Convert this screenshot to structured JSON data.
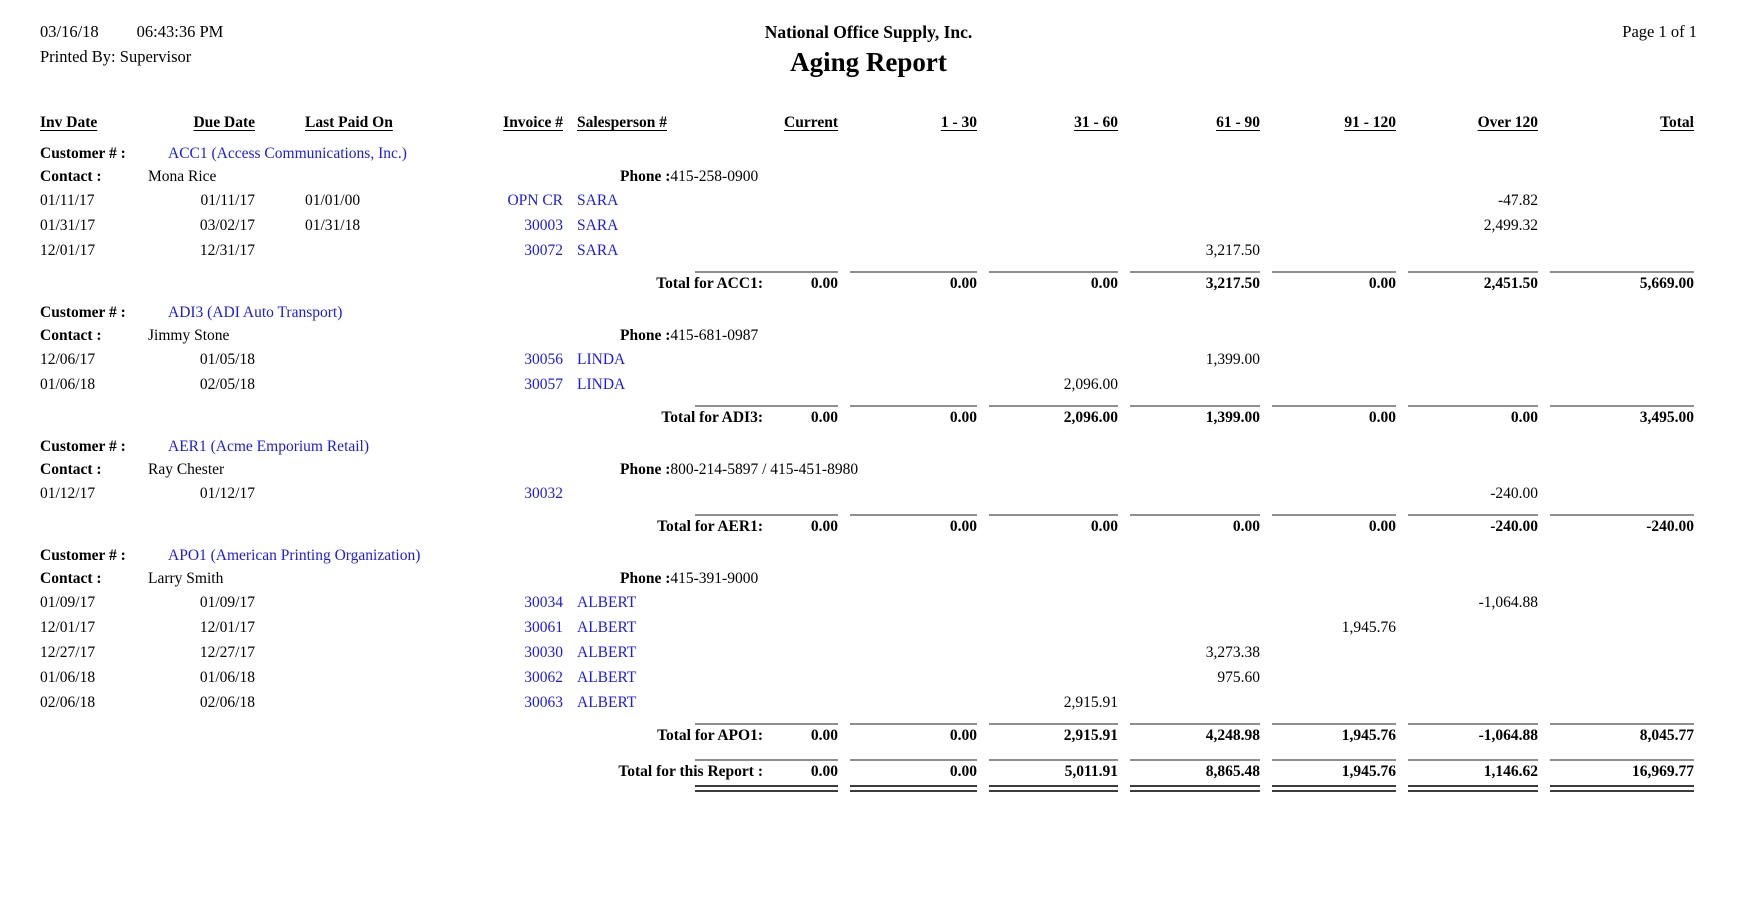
{
  "header": {
    "date": "03/16/18",
    "time": "06:43:36 PM",
    "printed_by_label": "Printed By:",
    "printed_by": "Supervisor",
    "company": "National Office Supply, Inc.",
    "report_title": "Aging Report",
    "page": "Page 1 of 1"
  },
  "columns": [
    "Inv Date",
    "Due Date",
    "Last Paid On",
    "Invoice #",
    "Salesperson #",
    "Current",
    "1 - 30",
    "31 - 60",
    "61 - 90",
    "91 - 120",
    "Over 120",
    "Total"
  ],
  "labels": {
    "customer": "Customer # :",
    "contact": "Contact :",
    "phone": "Phone :",
    "report_total": "Total for this Report :"
  },
  "customers": [
    {
      "id_name": "ACC1 (Access Communications, Inc.)",
      "contact": "Mona Rice",
      "phone": "415-258-0900",
      "rows": [
        {
          "inv_date": "01/11/17",
          "due_date": "01/11/17",
          "last_paid": "01/01/00",
          "invoice": "OPN CR",
          "salesperson": "SARA",
          "amounts": [
            "",
            "",
            "",
            "",
            "",
            "-47.82",
            ""
          ]
        },
        {
          "inv_date": "01/31/17",
          "due_date": "03/02/17",
          "last_paid": "01/31/18",
          "invoice": "30003",
          "salesperson": "SARA",
          "amounts": [
            "",
            "",
            "",
            "",
            "",
            "2,499.32",
            ""
          ]
        },
        {
          "inv_date": "12/01/17",
          "due_date": "12/31/17",
          "last_paid": "",
          "invoice": "30072",
          "salesperson": "SARA",
          "amounts": [
            "",
            "",
            "",
            "3,217.50",
            "",
            "",
            ""
          ]
        }
      ],
      "total_label": "Total for ACC1:",
      "totals": [
        "0.00",
        "0.00",
        "0.00",
        "3,217.50",
        "0.00",
        "2,451.50",
        "5,669.00"
      ]
    },
    {
      "id_name": "ADI3 (ADI Auto Transport)",
      "contact": "Jimmy Stone",
      "phone": "415-681-0987",
      "rows": [
        {
          "inv_date": "12/06/17",
          "due_date": "01/05/18",
          "last_paid": "",
          "invoice": "30056",
          "salesperson": "LINDA",
          "amounts": [
            "",
            "",
            "",
            "1,399.00",
            "",
            "",
            ""
          ]
        },
        {
          "inv_date": "01/06/18",
          "due_date": "02/05/18",
          "last_paid": "",
          "invoice": "30057",
          "salesperson": "LINDA",
          "amounts": [
            "",
            "",
            "2,096.00",
            "",
            "",
            "",
            ""
          ]
        }
      ],
      "total_label": "Total for ADI3:",
      "totals": [
        "0.00",
        "0.00",
        "2,096.00",
        "1,399.00",
        "0.00",
        "0.00",
        "3,495.00"
      ]
    },
    {
      "id_name": "AER1 (Acme Emporium Retail)",
      "contact": "Ray Chester",
      "phone": "800-214-5897 / 415-451-8980",
      "rows": [
        {
          "inv_date": "01/12/17",
          "due_date": "01/12/17",
          "last_paid": "",
          "invoice": "30032",
          "salesperson": "",
          "amounts": [
            "",
            "",
            "",
            "",
            "",
            "-240.00",
            ""
          ]
        }
      ],
      "total_label": "Total for AER1:",
      "totals": [
        "0.00",
        "0.00",
        "0.00",
        "0.00",
        "0.00",
        "-240.00",
        "-240.00"
      ]
    },
    {
      "id_name": "APO1 (American Printing Organization)",
      "contact": "Larry Smith",
      "phone": "415-391-9000",
      "rows": [
        {
          "inv_date": "01/09/17",
          "due_date": "01/09/17",
          "last_paid": "",
          "invoice": "30034",
          "salesperson": "ALBERT",
          "amounts": [
            "",
            "",
            "",
            "",
            "",
            "-1,064.88",
            ""
          ]
        },
        {
          "inv_date": "12/01/17",
          "due_date": "12/01/17",
          "last_paid": "",
          "invoice": "30061",
          "salesperson": "ALBERT",
          "amounts": [
            "",
            "",
            "",
            "",
            "1,945.76",
            "",
            ""
          ]
        },
        {
          "inv_date": "12/27/17",
          "due_date": "12/27/17",
          "last_paid": "",
          "invoice": "30030",
          "salesperson": "ALBERT",
          "amounts": [
            "",
            "",
            "",
            "3,273.38",
            "",
            "",
            ""
          ]
        },
        {
          "inv_date": "01/06/18",
          "due_date": "01/06/18",
          "last_paid": "",
          "invoice": "30062",
          "salesperson": "ALBERT",
          "amounts": [
            "",
            "",
            "",
            "975.60",
            "",
            "",
            ""
          ]
        },
        {
          "inv_date": "02/06/18",
          "due_date": "02/06/18",
          "last_paid": "",
          "invoice": "30063",
          "salesperson": "ALBERT",
          "amounts": [
            "",
            "",
            "2,915.91",
            "",
            "",
            "",
            ""
          ]
        }
      ],
      "total_label": "Total for APO1:",
      "totals": [
        "0.00",
        "0.00",
        "2,915.91",
        "4,248.98",
        "1,945.76",
        "-1,064.88",
        "8,045.77"
      ]
    }
  ],
  "report_totals": [
    "0.00",
    "0.00",
    "5,011.91",
    "8,865.48",
    "1,945.76",
    "1,146.62",
    "16,969.77"
  ],
  "colors": {
    "link_blue": "#1a1aef",
    "text": "#000000",
    "rule_gray": "#8f8f8f"
  }
}
